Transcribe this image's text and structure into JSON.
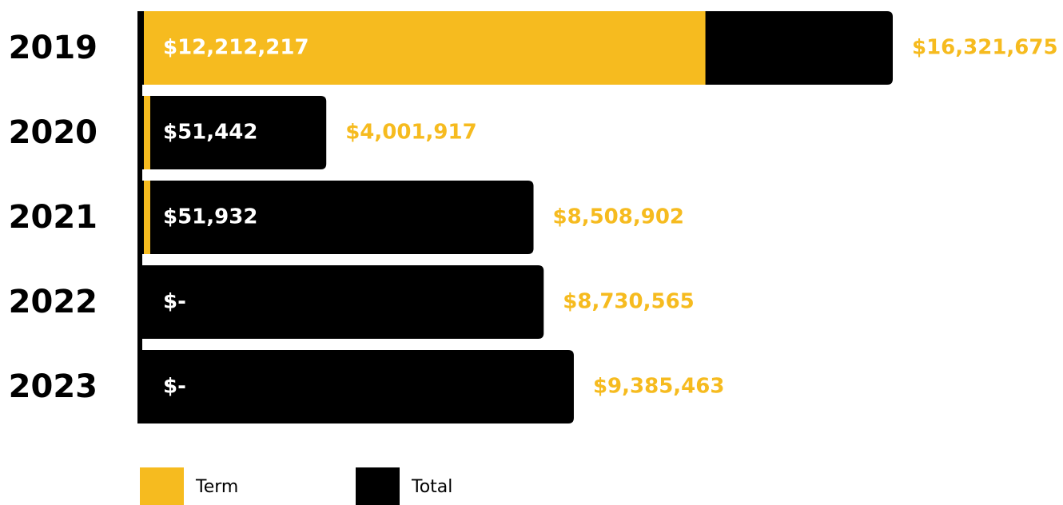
{
  "chart_data": {
    "type": "bar",
    "categories": [
      "2019",
      "2020",
      "2021",
      "2022",
      "2023"
    ],
    "series": [
      {
        "name": "Term",
        "color": "#f6bb1f",
        "values": [
          12212217,
          51442,
          51932,
          0,
          0
        ],
        "value_labels": [
          "$12,212,217",
          "$51,442",
          "$51,932",
          "$-",
          "$-"
        ]
      },
      {
        "name": "Total",
        "color": "#000000",
        "values": [
          16321675,
          4001917,
          8508902,
          8730565,
          9385463
        ],
        "value_labels": [
          "$16,321,675",
          "$4,001,917",
          "$8,508,902",
          "$8,730,565",
          "$9,385,463"
        ]
      }
    ]
  }
}
